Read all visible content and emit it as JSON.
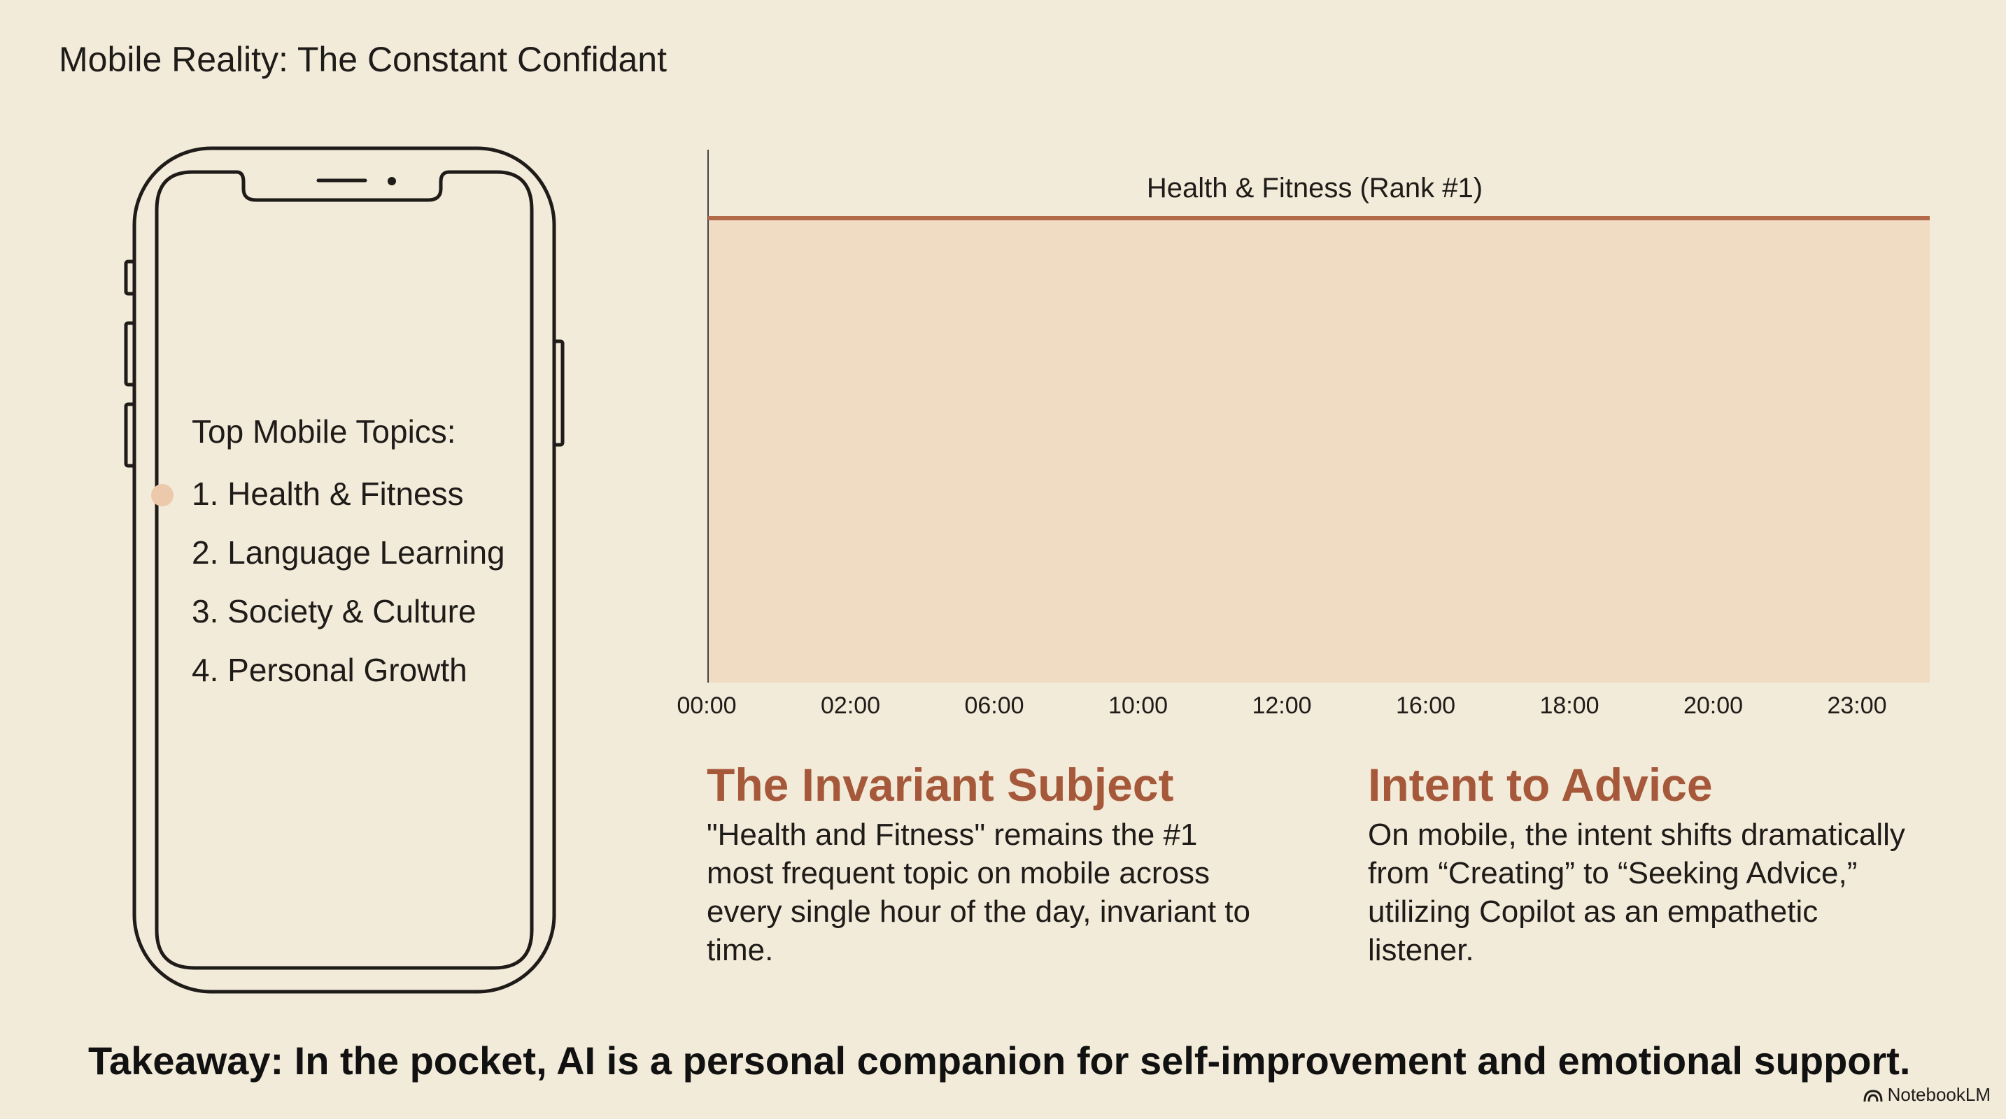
{
  "page": {
    "title": "Mobile Reality: The Constant Confidant",
    "brand": "NotebookLM"
  },
  "phone": {
    "heading": "Top Mobile Topics:",
    "items": [
      {
        "label": "1. Health & Fitness",
        "active": true
      },
      {
        "label": "2. Language Learning",
        "active": false
      },
      {
        "label": "3. Society & Culture",
        "active": false
      },
      {
        "label": "4. Personal Growth",
        "active": false
      }
    ]
  },
  "colors": {
    "background": "#f3ebda",
    "accent": "#a5583a",
    "area_fill": "#f0dbc3",
    "band_line": "#b26a48",
    "active_dot": "#edc9ac"
  },
  "chart_data": {
    "type": "area",
    "title": "",
    "xlabel": "",
    "ylabel": "",
    "x_tick_labels": [
      "00:00",
      "02:00",
      "06:00",
      "10:00",
      "12:00",
      "16:00",
      "18:00",
      "20:00",
      "23:00"
    ],
    "series": [
      {
        "name": "Health & Fitness (Rank #1)",
        "values": [
          1,
          1,
          1,
          1,
          1,
          1,
          1,
          1,
          1
        ]
      }
    ],
    "y_meaning": "Rank #1 at every hour",
    "grid": false,
    "legend": "none"
  },
  "blocks": {
    "left": {
      "heading": "The Invariant Subject",
      "body": "\"Health and Fitness\" remains the #1 most frequent topic on mobile across every single hour of the day, invariant to time."
    },
    "right": {
      "heading": "Intent to Advice",
      "body": "On mobile, the intent shifts dramatically from “Creating” to “Seeking Advice,” utilizing Copilot as an empathetic listener."
    }
  },
  "takeaway": "Takeaway: In the pocket, AI is a personal companion for self-improvement and emotional support."
}
